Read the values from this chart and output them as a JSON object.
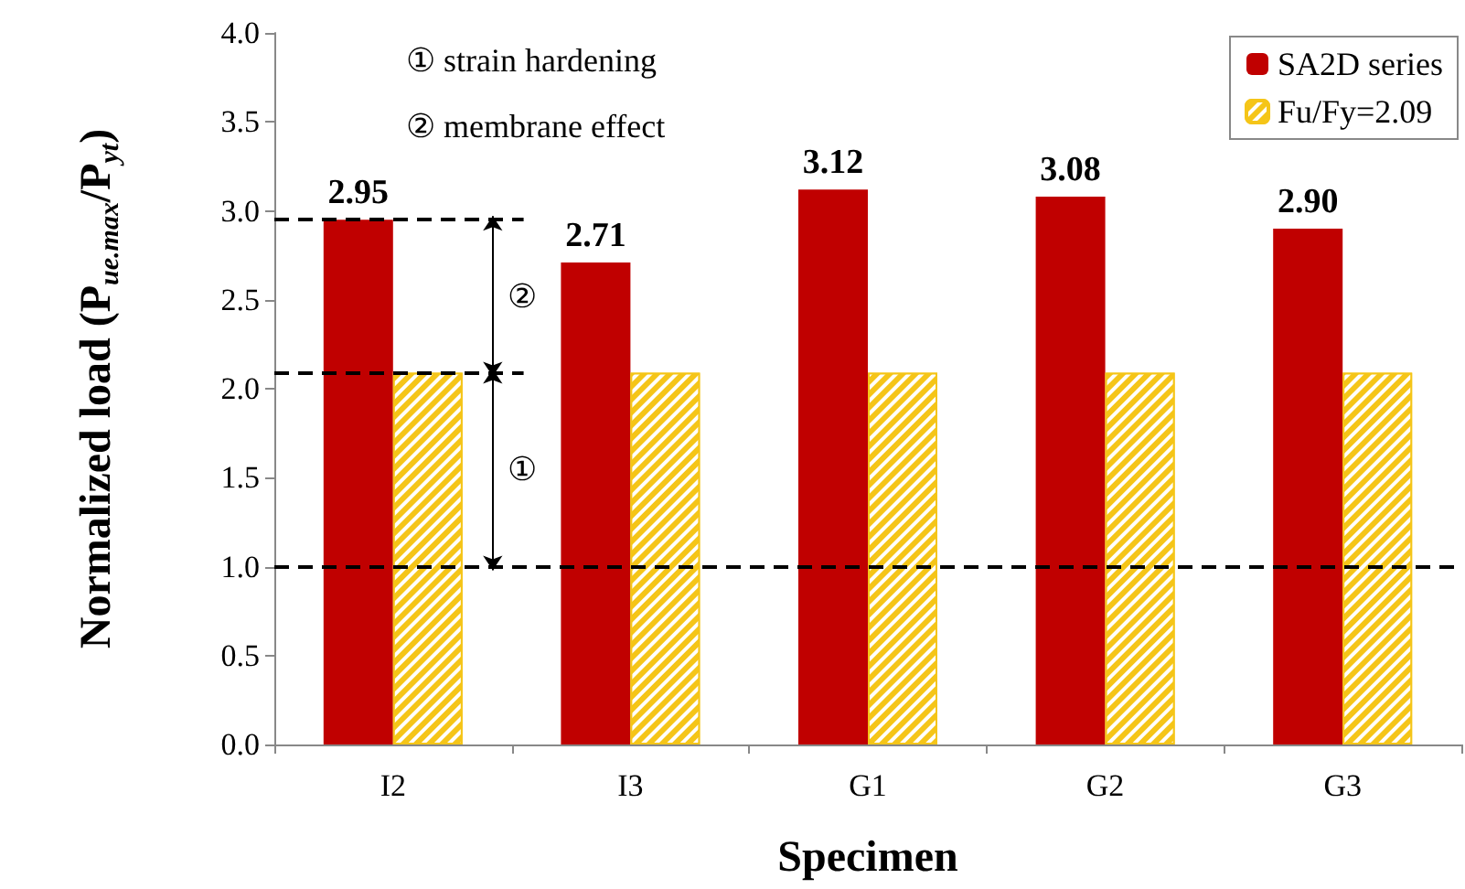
{
  "chart_data": {
    "type": "bar",
    "xlabel": "Specimen",
    "ylabel": "Normalized load (P$_{ue.max}$/P$_{yt}$)",
    "categories": [
      "I2",
      "I3",
      "G1",
      "G2",
      "G3"
    ],
    "series": [
      {
        "name": "SA2D series",
        "color": "#c00000",
        "values": [
          2.95,
          2.71,
          3.12,
          3.08,
          2.9
        ],
        "value_labels": [
          "2.95",
          "2.71",
          "3.12",
          "3.08",
          "2.90"
        ]
      },
      {
        "name": "Fu/Fy=2.09",
        "color": "#f5c518",
        "values": [
          2.09,
          2.09,
          2.09,
          2.09,
          2.09
        ]
      }
    ],
    "ylim": [
      0,
      4
    ],
    "yticks": [
      "0.0",
      "0.5",
      "1.0",
      "1.5",
      "2.0",
      "2.5",
      "3.0",
      "3.5",
      "4.0"
    ],
    "ref_lines": [
      {
        "axis": "y",
        "value": 1.0,
        "line_style": "dashed",
        "color": "#000000"
      },
      {
        "axis": "y",
        "value": 2.95,
        "line_style": "dashed",
        "color": "#000000"
      },
      {
        "axis": "y",
        "value": 2.09,
        "line_style": "dashed",
        "color": "#000000"
      }
    ],
    "annotations": [
      "① strain hardening",
      "② membrane effect",
      "②",
      "①"
    ],
    "legend": "top right",
    "grid": false
  }
}
